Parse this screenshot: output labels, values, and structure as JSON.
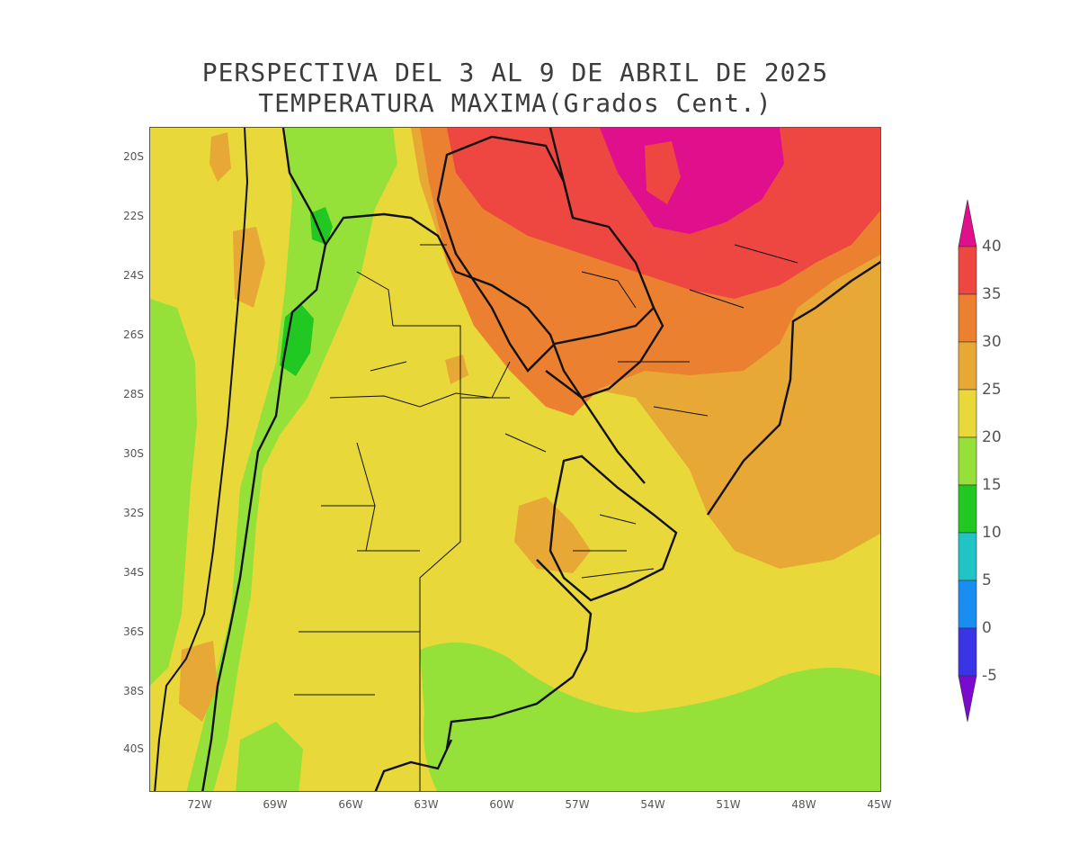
{
  "title": {
    "line1": "PERSPECTIVA DEL 3 AL 9 DE ABRIL DE 2025",
    "line2": "TEMPERATURA MAXIMA(Grados Cent.)"
  },
  "map": {
    "lat_ticks": [
      "20S",
      "22S",
      "24S",
      "26S",
      "28S",
      "30S",
      "32S",
      "34S",
      "36S",
      "38S",
      "40S"
    ],
    "lon_ticks": [
      "72W",
      "69W",
      "66W",
      "63W",
      "60W",
      "57W",
      "54W",
      "51W",
      "48W",
      "45W"
    ],
    "lat_range": [
      -19.1,
      -41.4
    ],
    "lon_range": [
      -74.0,
      -45.0
    ],
    "color_classes": [
      {
        "range": "< -5",
        "color": "#7a0ad0"
      },
      {
        "range": "-5 to 0",
        "color": "#3a34e6"
      },
      {
        "range": "0 to 5",
        "color": "#1a8ef0"
      },
      {
        "range": "5 to 10",
        "color": "#20c4c4"
      },
      {
        "range": "10 to 15",
        "color": "#22c822"
      },
      {
        "range": "15 to 20",
        "color": "#96e03a"
      },
      {
        "range": "20 to 25",
        "color": "#e8d83a"
      },
      {
        "range": "25 to 30",
        "color": "#e8a836"
      },
      {
        "range": "30 to 35",
        "color": "#ea8030"
      },
      {
        "range": "35 to 40",
        "color": "#ee4640"
      },
      {
        "range": "> 40",
        "color": "#e0108c"
      }
    ]
  },
  "colorbar": {
    "labels": [
      "40",
      "35",
      "30",
      "25",
      "20",
      "15",
      "10",
      "5",
      "0",
      "-5"
    ]
  }
}
